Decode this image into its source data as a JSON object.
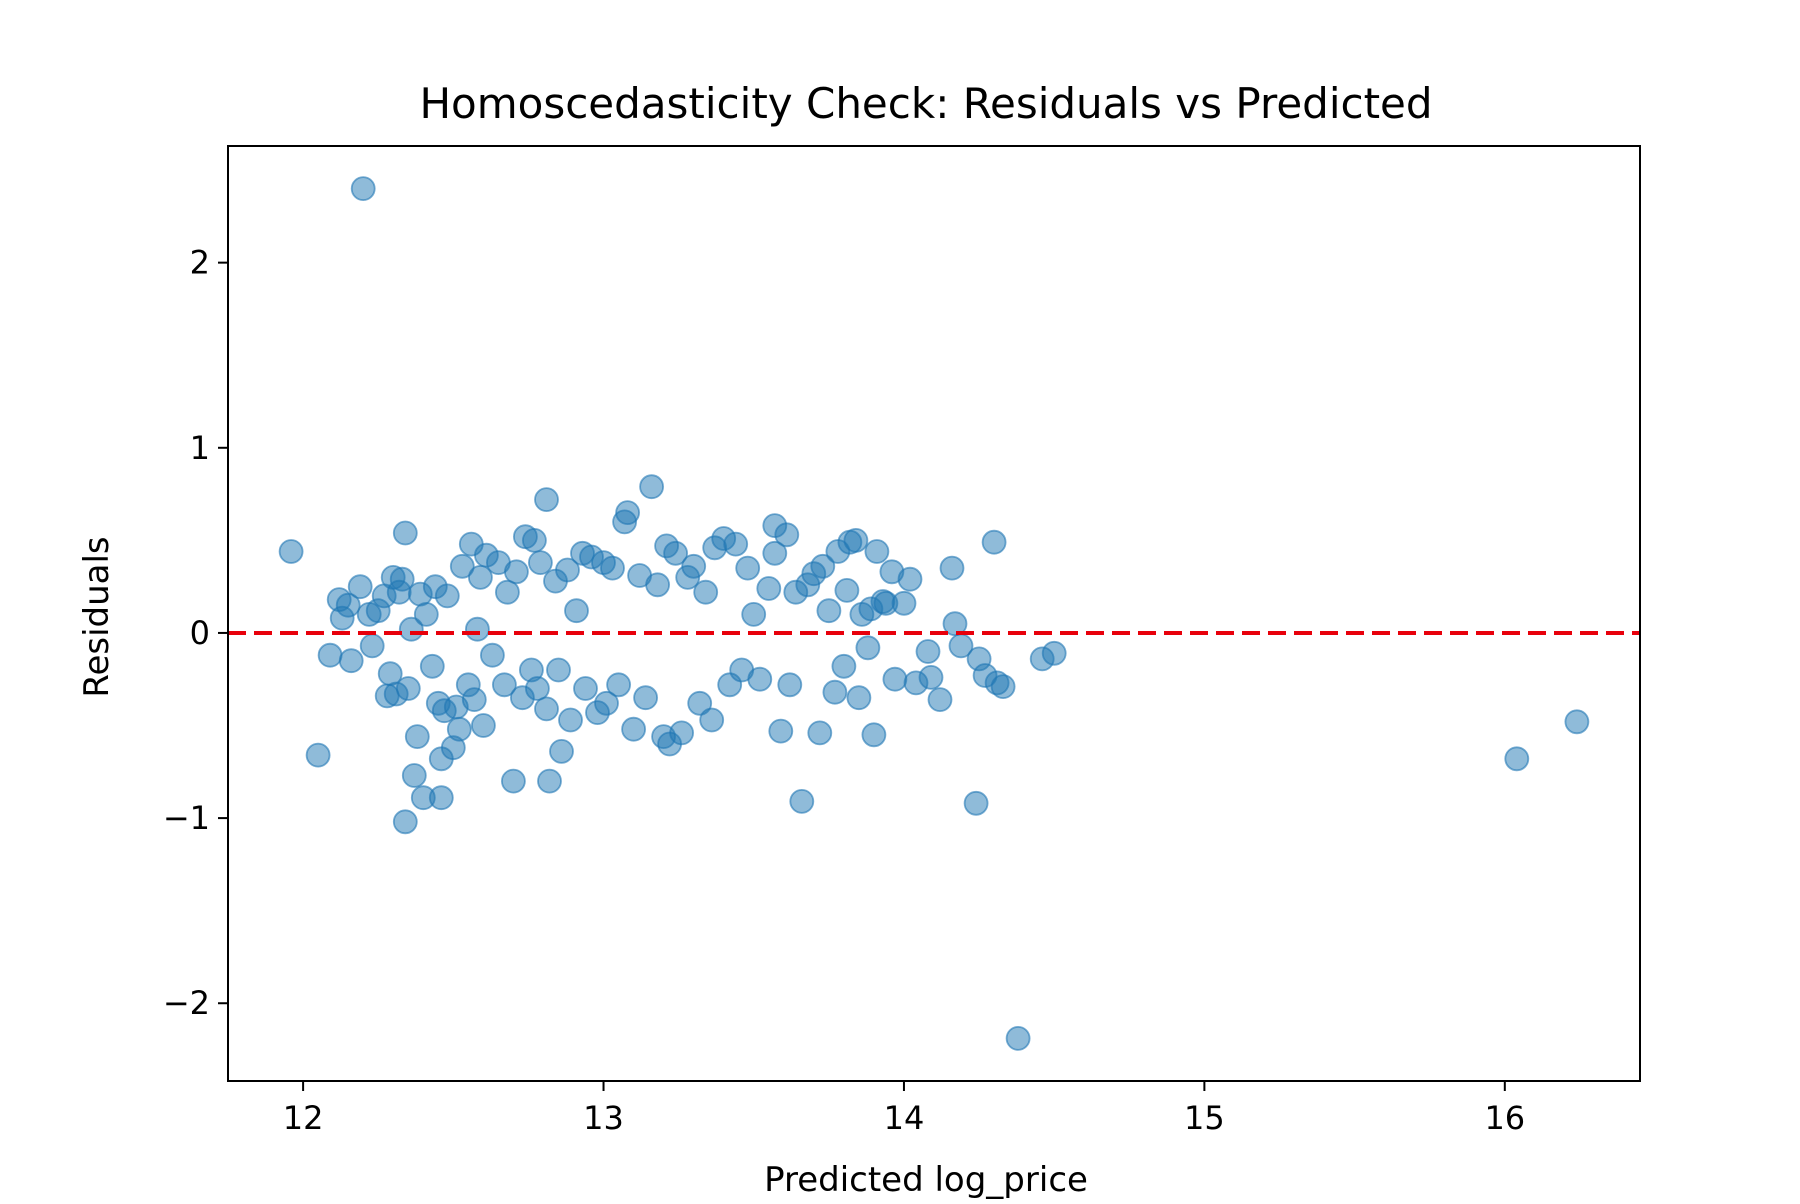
{
  "chart_data": {
    "type": "scatter",
    "title": "Homoscedasticity Check: Residuals vs Predicted",
    "xlabel": "Predicted log_price",
    "ylabel": "Residuals",
    "xlim": [
      11.75,
      16.45
    ],
    "ylim": [
      -2.42,
      2.63
    ],
    "xticks": [
      12,
      13,
      14,
      15,
      16
    ],
    "yticks": [
      -2,
      -1,
      0,
      1,
      2
    ],
    "xtick_labels": [
      "12",
      "13",
      "14",
      "15",
      "16"
    ],
    "ytick_labels": [
      "−2",
      "−1",
      "0",
      "1",
      "2"
    ],
    "grid": false,
    "legend": "none",
    "point_color": "#1f77b4",
    "reference_line": {
      "y": 0,
      "color": "#e8000b",
      "style": "dashed"
    },
    "points": [
      [
        11.96,
        0.44
      ],
      [
        12.05,
        -0.66
      ],
      [
        12.09,
        -0.12
      ],
      [
        12.12,
        0.18
      ],
      [
        12.13,
        0.08
      ],
      [
        12.15,
        0.15
      ],
      [
        12.16,
        -0.15
      ],
      [
        12.19,
        0.25
      ],
      [
        12.2,
        2.4
      ],
      [
        12.22,
        0.1
      ],
      [
        12.23,
        -0.07
      ],
      [
        12.25,
        0.12
      ],
      [
        12.27,
        0.2
      ],
      [
        12.28,
        -0.34
      ],
      [
        12.29,
        -0.22
      ],
      [
        12.3,
        0.3
      ],
      [
        12.31,
        -0.33
      ],
      [
        12.32,
        0.22
      ],
      [
        12.33,
        0.29
      ],
      [
        12.34,
        0.54
      ],
      [
        12.34,
        -1.02
      ],
      [
        12.35,
        -0.3
      ],
      [
        12.36,
        0.02
      ],
      [
        12.37,
        -0.77
      ],
      [
        12.38,
        -0.56
      ],
      [
        12.39,
        0.21
      ],
      [
        12.4,
        -0.89
      ],
      [
        12.41,
        0.1
      ],
      [
        12.43,
        -0.18
      ],
      [
        12.44,
        0.25
      ],
      [
        12.45,
        -0.38
      ],
      [
        12.46,
        -0.68
      ],
      [
        12.46,
        -0.89
      ],
      [
        12.47,
        -0.42
      ],
      [
        12.48,
        0.2
      ],
      [
        12.5,
        -0.62
      ],
      [
        12.51,
        -0.4
      ],
      [
        12.52,
        -0.52
      ],
      [
        12.53,
        0.36
      ],
      [
        12.55,
        -0.28
      ],
      [
        12.56,
        0.48
      ],
      [
        12.57,
        -0.36
      ],
      [
        12.58,
        0.02
      ],
      [
        12.59,
        0.3
      ],
      [
        12.6,
        -0.5
      ],
      [
        12.61,
        0.42
      ],
      [
        12.63,
        -0.12
      ],
      [
        12.65,
        0.38
      ],
      [
        12.67,
        -0.28
      ],
      [
        12.68,
        0.22
      ],
      [
        12.7,
        -0.8
      ],
      [
        12.71,
        0.33
      ],
      [
        12.73,
        -0.35
      ],
      [
        12.74,
        0.52
      ],
      [
        12.76,
        -0.2
      ],
      [
        12.77,
        0.5
      ],
      [
        12.78,
        -0.3
      ],
      [
        12.79,
        0.38
      ],
      [
        12.81,
        0.72
      ],
      [
        12.81,
        -0.41
      ],
      [
        12.82,
        -0.8
      ],
      [
        12.84,
        0.28
      ],
      [
        12.85,
        -0.2
      ],
      [
        12.86,
        -0.64
      ],
      [
        12.88,
        0.34
      ],
      [
        12.89,
        -0.47
      ],
      [
        12.91,
        0.12
      ],
      [
        12.93,
        0.43
      ],
      [
        12.94,
        -0.3
      ],
      [
        12.96,
        0.41
      ],
      [
        12.98,
        -0.43
      ],
      [
        13.0,
        0.38
      ],
      [
        13.01,
        -0.38
      ],
      [
        13.03,
        0.35
      ],
      [
        13.05,
        -0.28
      ],
      [
        13.07,
        0.6
      ],
      [
        13.08,
        0.65
      ],
      [
        13.1,
        -0.52
      ],
      [
        13.12,
        0.31
      ],
      [
        13.14,
        -0.35
      ],
      [
        13.16,
        0.79
      ],
      [
        13.18,
        0.26
      ],
      [
        13.2,
        -0.56
      ],
      [
        13.21,
        0.47
      ],
      [
        13.22,
        -0.6
      ],
      [
        13.24,
        0.43
      ],
      [
        13.26,
        -0.54
      ],
      [
        13.28,
        0.3
      ],
      [
        13.3,
        0.36
      ],
      [
        13.32,
        -0.38
      ],
      [
        13.34,
        0.22
      ],
      [
        13.36,
        -0.47
      ],
      [
        13.37,
        0.46
      ],
      [
        13.4,
        0.51
      ],
      [
        13.42,
        -0.28
      ],
      [
        13.44,
        0.48
      ],
      [
        13.46,
        -0.2
      ],
      [
        13.48,
        0.35
      ],
      [
        13.5,
        0.1
      ],
      [
        13.52,
        -0.25
      ],
      [
        13.55,
        0.24
      ],
      [
        13.57,
        0.58
      ],
      [
        13.57,
        0.43
      ],
      [
        13.59,
        -0.53
      ],
      [
        13.61,
        0.53
      ],
      [
        13.62,
        -0.28
      ],
      [
        13.64,
        0.22
      ],
      [
        13.66,
        -0.91
      ],
      [
        13.68,
        0.26
      ],
      [
        13.7,
        0.32
      ],
      [
        13.72,
        -0.54
      ],
      [
        13.73,
        0.36
      ],
      [
        13.75,
        0.12
      ],
      [
        13.77,
        -0.32
      ],
      [
        13.78,
        0.44
      ],
      [
        13.8,
        -0.18
      ],
      [
        13.81,
        0.23
      ],
      [
        13.82,
        0.49
      ],
      [
        13.84,
        0.5
      ],
      [
        13.85,
        -0.35
      ],
      [
        13.86,
        0.1
      ],
      [
        13.88,
        -0.08
      ],
      [
        13.89,
        0.13
      ],
      [
        13.9,
        -0.55
      ],
      [
        13.91,
        0.44
      ],
      [
        13.93,
        0.17
      ],
      [
        13.94,
        0.16
      ],
      [
        13.96,
        0.33
      ],
      [
        13.97,
        -0.25
      ],
      [
        14.0,
        0.16
      ],
      [
        14.02,
        0.29
      ],
      [
        14.04,
        -0.27
      ],
      [
        14.08,
        -0.1
      ],
      [
        14.09,
        -0.24
      ],
      [
        14.12,
        -0.36
      ],
      [
        14.16,
        0.35
      ],
      [
        14.17,
        0.05
      ],
      [
        14.19,
        -0.07
      ],
      [
        14.24,
        -0.92
      ],
      [
        14.25,
        -0.14
      ],
      [
        14.27,
        -0.23
      ],
      [
        14.3,
        0.49
      ],
      [
        14.31,
        -0.27
      ],
      [
        14.33,
        -0.29
      ],
      [
        14.38,
        -2.19
      ],
      [
        14.46,
        -0.14
      ],
      [
        14.5,
        -0.11
      ],
      [
        16.04,
        -0.68
      ],
      [
        16.24,
        -0.48
      ]
    ]
  }
}
